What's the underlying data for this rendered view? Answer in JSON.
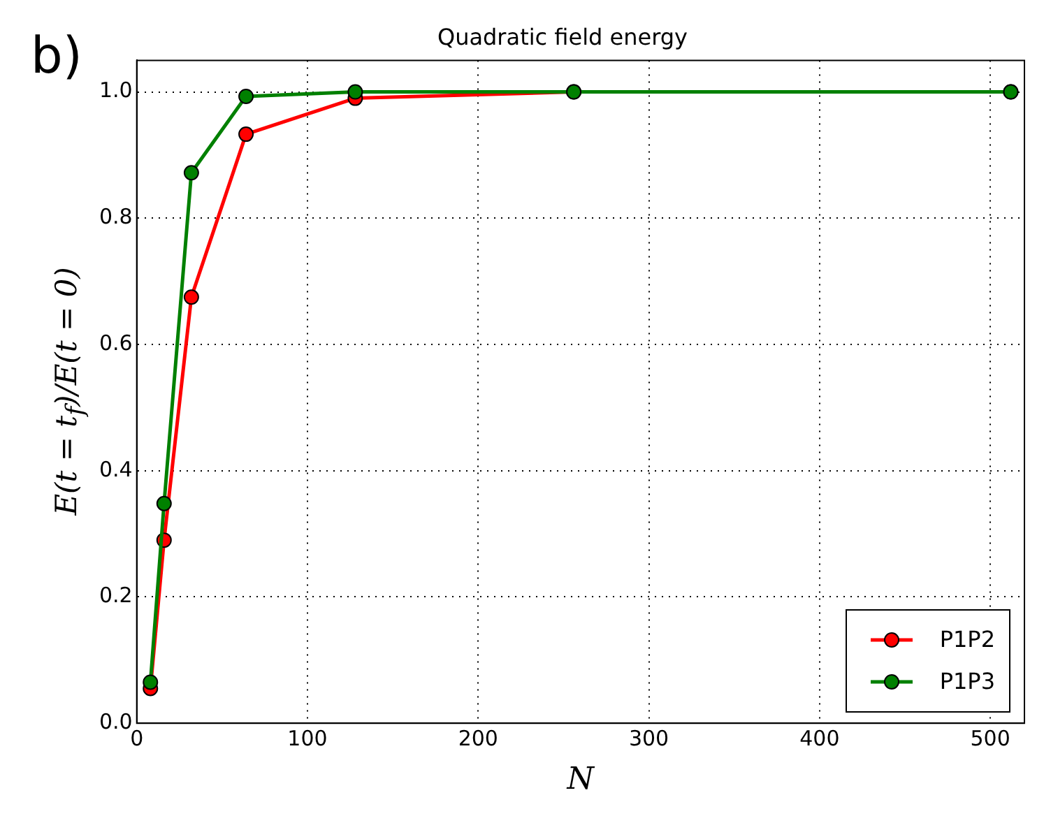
{
  "chart_data": {
    "type": "line",
    "title": "Quadratic field energy",
    "xlabel": "N",
    "ylabel": "E(t = t$_{f}$)/E(t = 0)",
    "annotations": [
      "b)"
    ],
    "x": [
      8,
      16,
      32,
      64,
      128,
      256,
      512
    ],
    "series": [
      {
        "name": "P1P2",
        "color": "#ff0000",
        "values": [
          0.055,
          0.29,
          0.675,
          0.933,
          0.99,
          1.0,
          1.0
        ]
      },
      {
        "name": "P1P3",
        "color": "#008000",
        "values": [
          0.065,
          0.348,
          0.872,
          0.993,
          1.0,
          1.0,
          1.0
        ]
      }
    ],
    "xlim": [
      0,
      520
    ],
    "xticks": [
      0,
      100,
      200,
      300,
      400,
      500
    ],
    "ylim": [
      0,
      1.05
    ],
    "yticks": [
      {
        "value": 0,
        "label": "0.0"
      },
      {
        "value": 0.2,
        "label": "0.2"
      },
      {
        "value": 0.4,
        "label": "0.4"
      },
      {
        "value": 0.6,
        "label": "0.6"
      },
      {
        "value": 0.8,
        "label": "0.8"
      },
      {
        "value": 1,
        "label": "1.0"
      }
    ],
    "grid": true,
    "legend": "bottom right",
    "marker": "circle",
    "line_style": "solid"
  }
}
